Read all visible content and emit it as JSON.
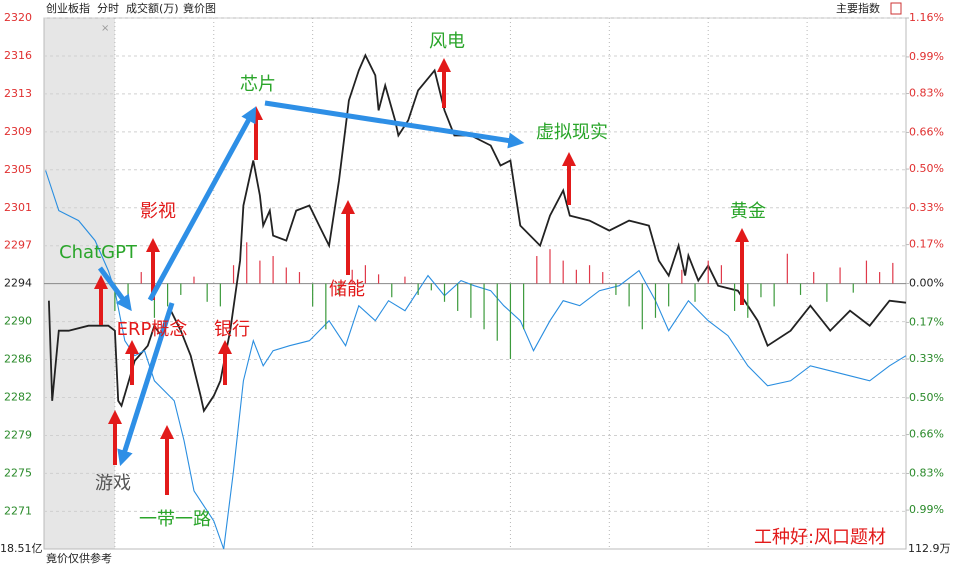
{
  "header": {
    "index_name": "创业板指",
    "tabs": [
      "分时",
      "成交额(万)",
      "竟价图"
    ],
    "right_label": "主要指数"
  },
  "chart_data": {
    "type": "line",
    "xlim": [
      -21.5,
      240
    ],
    "xticks": [
      0,
      30,
      60,
      90,
      120,
      150,
      180,
      210
    ],
    "ylim": [
      2267.2,
      2320.23
    ],
    "yticks": [
      {
        "value": 2320.23,
        "label": "2320"
      },
      {
        "value": 2316.44,
        "label": "2316"
      },
      {
        "value": 2312.65,
        "label": "2313"
      },
      {
        "value": 2308.86,
        "label": "2309"
      },
      {
        "value": 2305.07,
        "label": "2305"
      },
      {
        "value": 2301.28,
        "label": "2301"
      },
      {
        "value": 2297.49,
        "label": "2297"
      },
      {
        "value": 2293.7,
        "label": "2294"
      },
      {
        "value": 2289.91,
        "label": "2290"
      },
      {
        "value": 2286.12,
        "label": "2286"
      },
      {
        "value": 2282.33,
        "label": "2282"
      },
      {
        "value": 2278.54,
        "label": "2279"
      },
      {
        "value": 2274.75,
        "label": "2275"
      },
      {
        "value": 2270.96,
        "label": "2271"
      }
    ],
    "y2lim": [
      -1.16,
      1.16
    ],
    "y2ticks": [
      {
        "value": 1.16,
        "label": "1.16%"
      },
      {
        "value": 0.99,
        "label": "0.99%"
      },
      {
        "value": 0.83,
        "label": "0.83%"
      },
      {
        "value": 0.66,
        "label": "0.66%"
      },
      {
        "value": 0.5,
        "label": "0.50%"
      },
      {
        "value": 0.33,
        "label": "0.33%"
      },
      {
        "value": 0.17,
        "label": "0.17%"
      },
      {
        "value": 0,
        "label": "0.00%"
      },
      {
        "value": -0.17,
        "label": "0.17%"
      },
      {
        "value": -0.33,
        "label": "0.33%"
      },
      {
        "value": -0.5,
        "label": "0.50%"
      },
      {
        "value": -0.66,
        "label": "0.66%"
      },
      {
        "value": -0.83,
        "label": "0.83%"
      },
      {
        "value": -0.99,
        "label": "0.99%"
      }
    ],
    "grid": true,
    "series": [
      {
        "color": "#222222",
        "x": [
          -20,
          -19,
          -17,
          -14,
          -8,
          -2,
          0,
          1,
          2,
          6,
          10,
          12,
          14,
          17,
          20,
          23,
          26,
          27,
          30,
          32,
          35,
          38,
          39,
          41,
          42,
          44,
          45,
          47,
          48,
          52,
          55,
          59,
          62,
          65,
          68,
          71,
          74,
          76,
          79,
          80,
          82,
          85,
          86,
          89,
          92,
          97,
          100,
          103,
          108,
          114,
          117,
          120,
          123,
          129,
          132,
          136,
          138,
          144,
          150,
          156,
          162,
          165,
          168,
          171,
          173,
          174,
          177,
          180,
          183,
          189,
          195,
          198,
          205,
          211,
          217,
          223,
          229,
          235,
          240
        ],
        "values": [
          2292.0,
          2282.0,
          2289.0,
          2289.0,
          2289.5,
          2289.5,
          2289.0,
          2282.0,
          2281.5,
          2286.0,
          2287.5,
          2289.5,
          2288.5,
          2291.0,
          2289.0,
          2286.5,
          2282.5,
          2281.0,
          2282.5,
          2284.0,
          2289.0,
          2296.0,
          2301.5,
          2304.5,
          2306.0,
          2302.5,
          2299.5,
          2301.0,
          2298.5,
          2298.0,
          2301.0,
          2301.5,
          2299.5,
          2297.5,
          2304.0,
          2312.0,
          2315.0,
          2316.5,
          2314.5,
          2311.0,
          2313.5,
          2310.0,
          2308.5,
          2310.0,
          2313.0,
          2315.0,
          2311.0,
          2308.5,
          2308.5,
          2307.5,
          2305.5,
          2306.0,
          2299.5,
          2297.5,
          2300.5,
          2303.0,
          2300.5,
          2300.0,
          2299.0,
          2300.0,
          2299.5,
          2296.0,
          2294.5,
          2297.5,
          2294.5,
          2296.5,
          2294.0,
          2295.5,
          2293.5,
          2293.0,
          2290.0,
          2287.5,
          2289.0,
          2291.5,
          2289.0,
          2291.0,
          2289.5,
          2292.0,
          2291.8
        ]
      },
      {
        "color": "#2a8ee0",
        "x": [
          -21,
          -20,
          -17,
          -14,
          -11,
          -6,
          -2,
          0,
          3,
          6,
          9,
          12,
          15,
          18,
          21,
          24,
          27,
          30,
          33,
          36,
          39,
          42,
          45,
          48,
          53,
          59,
          65,
          70,
          74,
          79,
          83,
          88,
          92,
          95,
          100,
          105,
          109,
          114,
          118,
          123,
          127,
          132,
          136,
          141,
          147,
          153,
          159,
          164,
          168,
          174,
          180,
          186,
          192,
          198,
          205,
          211,
          217,
          223,
          229,
          235,
          240
        ],
        "values": [
          2305.0,
          2304.0,
          2301.0,
          2300.5,
          2300.0,
          2298.0,
          2295.0,
          2293.0,
          2288.0,
          2286.5,
          2287.0,
          2284.0,
          2283.0,
          2282.0,
          2278.0,
          2273.0,
          2271.5,
          2270.0,
          2267.2,
          2275.0,
          2284.0,
          2288.0,
          2285.5,
          2287.0,
          2287.5,
          2288.0,
          2290.0,
          2287.5,
          2291.5,
          2290.0,
          2292.0,
          2291.0,
          2293.0,
          2294.5,
          2292.5,
          2294.0,
          2293.5,
          2293.0,
          2291.5,
          2290.0,
          2287.0,
          2290.0,
          2292.0,
          2291.5,
          2293.0,
          2293.5,
          2295.0,
          2292.0,
          2289.0,
          2292.0,
          2290.0,
          2288.5,
          2285.5,
          2283.5,
          2284.0,
          2285.5,
          2285.0,
          2284.5,
          2284.0,
          2285.5,
          2286.5
        ]
      },
      {
        "type": "bar",
        "axis": "y2",
        "up_color": "#e0394a",
        "down_color": "#3c9a3c",
        "x": [
          0,
          4,
          8,
          12,
          16,
          20,
          24,
          28,
          32,
          36,
          40,
          44,
          48,
          52,
          56,
          60,
          64,
          68,
          72,
          76,
          80,
          84,
          88,
          92,
          96,
          100,
          104,
          108,
          112,
          116,
          120,
          124,
          128,
          132,
          136,
          140,
          144,
          148,
          152,
          156,
          160,
          164,
          168,
          172,
          176,
          180,
          184,
          188,
          192,
          196,
          200,
          204,
          208,
          212,
          216,
          220,
          224,
          228,
          232,
          236
        ],
        "values": [
          -0.12,
          -0.08,
          0.05,
          -0.15,
          -0.1,
          -0.05,
          0.03,
          -0.08,
          -0.1,
          0.08,
          0.18,
          0.1,
          0.12,
          0.07,
          0.05,
          -0.1,
          -0.2,
          -0.05,
          0.06,
          0.08,
          0.04,
          -0.06,
          0.03,
          -0.05,
          -0.03,
          -0.08,
          -0.12,
          -0.15,
          -0.2,
          -0.25,
          -0.33,
          -0.2,
          0.12,
          0.15,
          0.1,
          0.06,
          0.08,
          0.05,
          -0.05,
          -0.1,
          -0.2,
          -0.15,
          -0.1,
          0.06,
          -0.08,
          0.1,
          0.08,
          -0.12,
          -0.15,
          -0.06,
          -0.1,
          0.13,
          -0.05,
          0.05,
          -0.08,
          0.07,
          -0.04,
          0.1,
          0.05,
          0.09
        ]
      }
    ],
    "annotations": [
      "芯片",
      "风电",
      "虚拟现实",
      "黄金",
      "影视",
      "ChatGPT",
      "储能",
      "ERP概念",
      "银行",
      "游戏",
      "一带一路",
      "工种好:风口题材"
    ]
  },
  "footer": {
    "left_amount": "18.51亿",
    "note": "竟价仅供参考",
    "right_amount": "112.9万"
  }
}
